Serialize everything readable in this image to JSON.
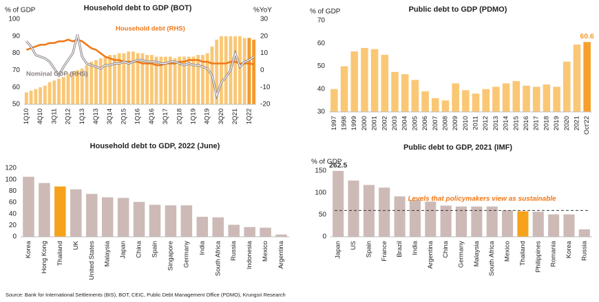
{
  "chart_data": [
    {
      "type": "bar_line",
      "title": "Household debt to GDP (BOT)",
      "ylabel": "% of GDP",
      "y2label": "%YoY",
      "categories": [
        "1Q10",
        null,
        null,
        "4Q10",
        null,
        null,
        "3Q11",
        null,
        null,
        "2Q12",
        null,
        null,
        "1Q13",
        null,
        null,
        "4Q13",
        null,
        null,
        "3Q14",
        null,
        null,
        "2Q15",
        null,
        null,
        "1Q16",
        null,
        null,
        "4Q16",
        null,
        null,
        "3Q17",
        null,
        null,
        "2Q18",
        null,
        null,
        "1Q19",
        null,
        null,
        "4Q19",
        null,
        null,
        "3Q20",
        null,
        null,
        "2Q21",
        null,
        null,
        "1Q22",
        null
      ],
      "values": [
        57,
        58,
        59,
        60,
        61,
        63,
        64,
        65,
        66,
        68,
        69,
        70,
        71,
        73,
        75,
        76,
        77,
        78,
        79,
        79,
        80,
        80,
        81,
        81,
        80,
        80,
        79,
        79,
        78,
        78,
        78,
        78,
        77,
        78,
        78,
        78,
        78,
        79,
        79,
        80,
        84,
        88,
        90,
        90,
        90,
        90,
        90,
        89,
        89,
        88
      ],
      "colors": [
        "#fac775",
        "#fac775",
        "#fac775",
        "#fac775",
        "#fac775",
        "#fac775",
        "#fac775",
        "#fac775",
        "#fac775",
        "#fac775",
        "#fac775",
        "#fac775",
        "#fac775",
        "#fac775",
        "#fac775",
        "#fac775",
        "#fac775",
        "#fac775",
        "#fac775",
        "#fac775",
        "#fac775",
        "#fac775",
        "#fac775",
        "#fac775",
        "#fac775",
        "#fac775",
        "#fac775",
        "#fac775",
        "#fac775",
        "#fac775",
        "#fac775",
        "#fac775",
        "#fac775",
        "#fac775",
        "#fac775",
        "#fac775",
        "#fac775",
        "#fac775",
        "#fac775",
        "#fac775",
        "#fac775",
        "#fac775",
        "#fac775",
        "#fac775",
        "#fac775",
        "#fac775",
        "#fac775",
        "#fac775",
        "#f39a2b",
        "#f39a2b"
      ],
      "ylim": [
        50,
        100
      ],
      "yticks": [
        50,
        60,
        70,
        80,
        90,
        100
      ],
      "y2lim": [
        -20,
        30
      ],
      "y2ticks": [
        -20,
        -10,
        0,
        10,
        20,
        30
      ],
      "series": [
        {
          "name": "Household debt (RHS)",
          "color": "#f07818",
          "axis": "y2",
          "values": [
            12,
            13,
            14,
            15,
            15,
            16,
            16,
            17,
            17,
            18,
            17,
            18,
            17,
            15,
            13,
            12,
            10,
            8,
            7,
            6,
            6,
            5,
            5,
            5,
            5,
            4,
            4,
            4,
            3,
            3,
            4,
            4,
            4,
            5,
            5,
            6,
            6,
            6,
            5,
            5,
            4,
            4,
            4,
            4,
            5,
            5,
            4,
            4,
            4,
            3.5
          ]
        },
        {
          "name": "Nominal GDP (RHS)",
          "color": "#8c8283",
          "axis": "y2",
          "values": [
            17,
            14,
            9,
            8,
            7,
            5,
            1,
            -3,
            2,
            6,
            10,
            21,
            8,
            4,
            3,
            2,
            1,
            3,
            3,
            4,
            4,
            5,
            4,
            5,
            6,
            6,
            5,
            5,
            5,
            4,
            4,
            5,
            5,
            4,
            3,
            4,
            3,
            3,
            2,
            1,
            -3,
            -15,
            -7,
            -4,
            0,
            10,
            2,
            5,
            6,
            8
          ]
        }
      ]
    },
    {
      "type": "bar",
      "title": "Public debt to GDP (PDMO)",
      "ylabel": "% of GDP",
      "categories": [
        "1997",
        "1998",
        "1999",
        "2000",
        "2001",
        "2002",
        "2003",
        "2004",
        "2005",
        "2006",
        "2007",
        "2008",
        "2009",
        "2010",
        "2011",
        "2012",
        "2013",
        "2014",
        "2015",
        "2016",
        "2017",
        "2018",
        "2019",
        "2020",
        "2021",
        "Oct'22"
      ],
      "values": [
        40,
        50,
        56.5,
        58,
        57.5,
        55,
        47.5,
        46.5,
        44,
        39,
        36,
        35,
        42.5,
        39.5,
        38,
        40,
        41,
        42.5,
        43.5,
        41.5,
        41,
        42,
        41,
        52,
        59.5,
        60.6
      ],
      "value_labels": [
        null,
        null,
        null,
        null,
        null,
        null,
        null,
        null,
        null,
        null,
        null,
        null,
        null,
        null,
        null,
        null,
        null,
        null,
        null,
        null,
        null,
        null,
        null,
        null,
        null,
        "60.6"
      ],
      "value_label_color": "#f39a2b",
      "colors": [
        "#fac775",
        "#fac775",
        "#fac775",
        "#fac775",
        "#fac775",
        "#fac775",
        "#fac775",
        "#fac775",
        "#fac775",
        "#fac775",
        "#fac775",
        "#fac775",
        "#fac775",
        "#fac775",
        "#fac775",
        "#fac775",
        "#fac775",
        "#fac775",
        "#fac775",
        "#fac775",
        "#fac775",
        "#fac775",
        "#fac775",
        "#fac775",
        "#fac775",
        "#f5a02a"
      ],
      "ylim": [
        30,
        70
      ],
      "yticks": [
        30,
        40,
        50,
        60,
        70
      ]
    },
    {
      "type": "bar",
      "title": "Household debt to GDP, 2022 (June)",
      "categories": [
        "Korea",
        "Hong Kong",
        "Thailand",
        "UK",
        "United States",
        "Malaysia",
        "Japan",
        "China",
        "Spain",
        "Singapore",
        "Germany",
        "India",
        "South Africa",
        "Russia",
        "Indonesia",
        "Mexico",
        "Argentina"
      ],
      "values": [
        105,
        94,
        88,
        83,
        75,
        69,
        68,
        61,
        56,
        55,
        55,
        35,
        34,
        21,
        17,
        16,
        4
      ],
      "colors": [
        "#cdbab6",
        "#cdbab6",
        "#f7a21b",
        "#cdbab6",
        "#cdbab6",
        "#cdbab6",
        "#cdbab6",
        "#cdbab6",
        "#cdbab6",
        "#cdbab6",
        "#cdbab6",
        "#cdbab6",
        "#cdbab6",
        "#cdbab6",
        "#cdbab6",
        "#cdbab6",
        "#cdbab6"
      ],
      "ylim": [
        0,
        120
      ],
      "yticks": [
        0,
        20,
        40,
        60,
        80,
        100,
        120
      ]
    },
    {
      "type": "bar",
      "title": "Public debt to GDP, 2021 (IMF)",
      "ylabel": "% of GDP",
      "categories": [
        "Japan",
        "US",
        "Spain",
        "France",
        "Brazil",
        "India",
        "Argentina",
        "China",
        "Germany",
        "Malaysia",
        "South Africa",
        "Mexico",
        "Thailand",
        "Philippines",
        "Romania",
        "Korea",
        "Russia"
      ],
      "values": [
        262.5,
        128,
        118,
        112,
        92,
        84,
        80,
        71,
        69,
        69,
        69,
        60,
        58,
        57,
        51,
        51,
        17
      ],
      "value_labels": [
        "262.5",
        null,
        null,
        null,
        null,
        null,
        null,
        null,
        null,
        null,
        null,
        null,
        null,
        null,
        null,
        null,
        null
      ],
      "value_label_color": "#333333",
      "colors": [
        "#cdbab6",
        "#cdbab6",
        "#cdbab6",
        "#cdbab6",
        "#cdbab6",
        "#cdbab6",
        "#cdbab6",
        "#cdbab6",
        "#cdbab6",
        "#cdbab6",
        "#cdbab6",
        "#cdbab6",
        "#f7a21b",
        "#cdbab6",
        "#cdbab6",
        "#cdbab6",
        "#cdbab6"
      ],
      "ylim": [
        0,
        150
      ],
      "yticks": [
        0,
        50,
        100,
        150
      ],
      "reference_line": 60,
      "annotation": "Levels that policymakers view as sustainable"
    }
  ],
  "source": "Source: Bank for International Settlements (BIS), BOT, CEIC, Public Debt Management Office (PDMO), Krungsri Research"
}
